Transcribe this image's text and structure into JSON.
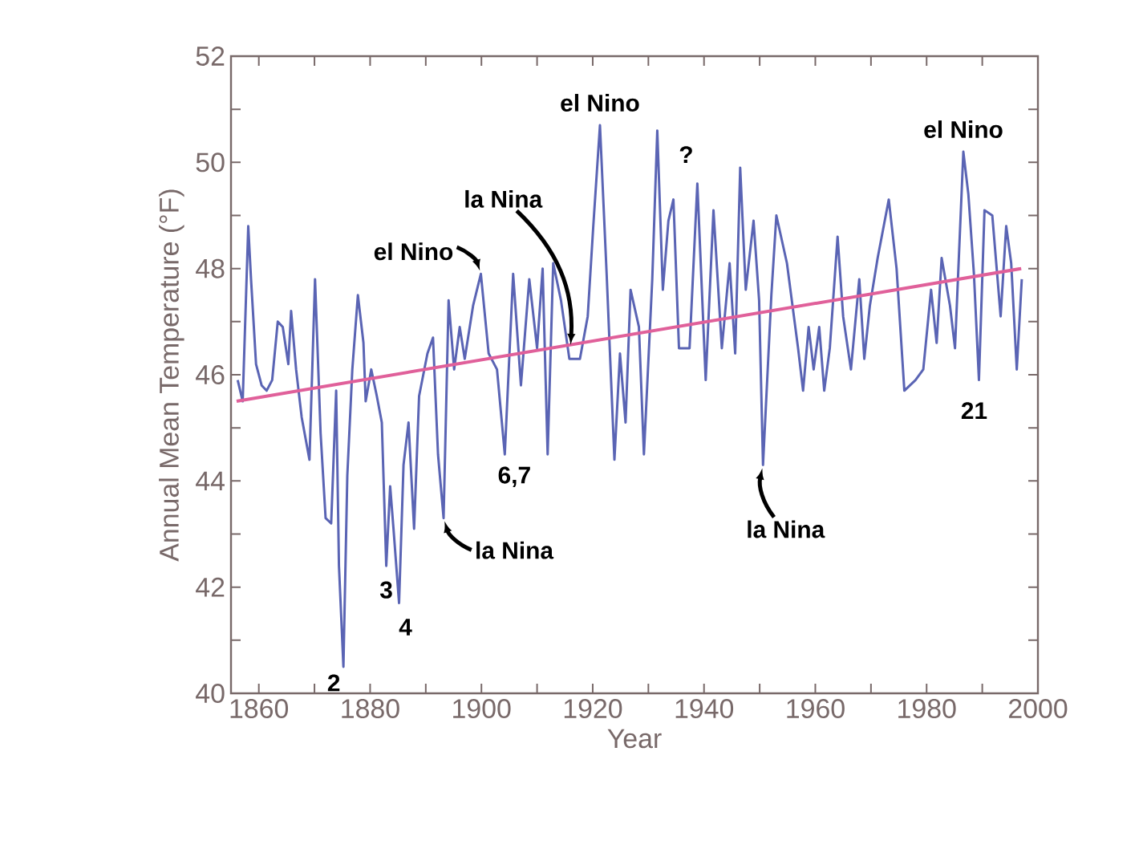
{
  "chart_data": {
    "type": "line",
    "xlabel": "Year",
    "ylabel": "Annual Mean Temperature (°F)",
    "xlim": [
      1855,
      2000
    ],
    "ylim": [
      40,
      52
    ],
    "xticks": [
      1860,
      {
        "value": 1870,
        "label": null
      },
      1880,
      {
        "value": 1890,
        "label": null
      },
      1900,
      {
        "value": 1910,
        "label": null
      },
      1920,
      {
        "value": 1930,
        "label": null
      },
      1940,
      {
        "value": 1950,
        "label": null
      },
      1960,
      {
        "value": 1970,
        "label": null
      },
      1980,
      {
        "value": 1990,
        "label": null
      },
      2000
    ],
    "yticks": [
      40,
      {
        "value": 41,
        "label": null
      },
      42,
      {
        "value": 43,
        "label": null
      },
      44,
      {
        "value": 45,
        "label": null
      },
      46,
      {
        "value": 47,
        "label": null
      },
      48,
      {
        "value": 49,
        "label": null
      },
      50,
      {
        "value": 51,
        "label": null
      },
      52
    ],
    "series": [
      {
        "color": "#5a64b4",
        "x": [
          1856.2,
          1857.1,
          1858.1,
          1858.6,
          1859.5,
          1860.5,
          1861.4,
          1862.4,
          1863.4,
          1864.3,
          1865.3,
          1865.8,
          1866.7,
          1867.7,
          1869.1,
          1870.1,
          1871.1,
          1872.0,
          1873.0,
          1873.9,
          1874.4,
          1875.2,
          1875.9,
          1876.8,
          1877.8,
          1878.8,
          1879.2,
          1880.2,
          1881.2,
          1882.1,
          1882.9,
          1883.6,
          1884.2,
          1885.2,
          1886.0,
          1886.9,
          1887.9,
          1888.8,
          1890.3,
          1891.3,
          1892.2,
          1893.2,
          1894.1,
          1895.1,
          1896.1,
          1897.0,
          1898.5,
          1899.9,
          1901.3,
          1902.8,
          1904.2,
          1905.7,
          1907.1,
          1908.6,
          1910.0,
          1911.0,
          1911.9,
          1912.9,
          1914.3,
          1915.8,
          1917.7,
          1919.1,
          1920.1,
          1921.3,
          1922.5,
          1923.9,
          1924.9,
          1925.9,
          1926.8,
          1928.3,
          1929.2,
          1930.7,
          1931.6,
          1932.6,
          1933.6,
          1934.5,
          1935.5,
          1937.4,
          1938.8,
          1940.3,
          1941.7,
          1943.2,
          1944.6,
          1945.6,
          1946.5,
          1947.5,
          1948.9,
          1949.9,
          1950.6,
          1952.1,
          1953.0,
          1954.9,
          1956.9,
          1957.8,
          1958.8,
          1959.7,
          1960.7,
          1961.6,
          1962.6,
          1964.0,
          1965.0,
          1966.4,
          1967.9,
          1968.8,
          1969.8,
          1971.2,
          1973.2,
          1974.6,
          1976.0,
          1978.0,
          1979.4,
          1980.8,
          1981.8,
          1982.7,
          1984.2,
          1985.1,
          1986.6,
          1987.5,
          1988.5,
          1989.4,
          1990.4,
          1991.8,
          1993.3,
          1994.3,
          1995.2,
          1996.2,
          1997.1
        ],
        "values": [
          45.9,
          45.5,
          48.8,
          47.8,
          46.2,
          45.8,
          45.7,
          45.9,
          47.0,
          46.9,
          46.2,
          47.2,
          46.1,
          45.2,
          44.4,
          47.8,
          44.9,
          43.3,
          43.2,
          45.7,
          42.4,
          40.5,
          44.1,
          46.1,
          47.5,
          46.6,
          45.5,
          46.1,
          45.6,
          45.1,
          42.4,
          43.9,
          43.1,
          41.7,
          44.3,
          45.1,
          43.1,
          45.6,
          46.4,
          46.7,
          44.5,
          43.3,
          47.4,
          46.1,
          46.9,
          46.3,
          47.3,
          47.9,
          46.4,
          46.1,
          44.5,
          47.9,
          45.8,
          47.8,
          46.5,
          48.0,
          44.5,
          48.1,
          47.4,
          46.3,
          46.3,
          47.1,
          48.8,
          50.7,
          47.9,
          44.4,
          46.4,
          45.1,
          47.6,
          46.9,
          44.5,
          47.8,
          50.6,
          47.6,
          48.9,
          49.3,
          46.5,
          46.5,
          49.6,
          45.9,
          49.1,
          46.5,
          48.1,
          46.4,
          49.9,
          47.6,
          48.9,
          47.4,
          44.3,
          47.5,
          49.0,
          48.1,
          46.5,
          45.7,
          46.9,
          46.1,
          46.9,
          45.7,
          46.5,
          48.6,
          47.1,
          46.1,
          47.8,
          46.3,
          47.3,
          48.2,
          49.3,
          48.0,
          45.7,
          45.9,
          46.1,
          47.6,
          46.6,
          48.2,
          47.3,
          46.5,
          50.2,
          49.4,
          47.9,
          45.9,
          49.1,
          49.0,
          47.1,
          48.8,
          48.1,
          46.1,
          47.8
        ]
      },
      {
        "color": "#e0609a",
        "x": [
          1856,
          1997
        ],
        "values": [
          45.5,
          48.0
        ]
      }
    ],
    "annotations": [
      {
        "text": "el Nino",
        "x": 1921.3,
        "y": 50.7
      },
      {
        "text": "?",
        "x": 1931.6,
        "y": 50.6
      },
      {
        "text": "la Nina",
        "x": 1916,
        "y": 46.5
      },
      {
        "text": "el Nino",
        "x": 1899.9,
        "y": 47.9
      },
      {
        "text": "la Nina",
        "x": 1893.2,
        "y": 43.3
      },
      {
        "text": "6,7",
        "x": 1904.2,
        "y": 44.5
      },
      {
        "text": "2",
        "x": 1875.2,
        "y": 40.5
      },
      {
        "text": "3",
        "x": 1882.9,
        "y": 42.4
      },
      {
        "text": "4",
        "x": 1885.2,
        "y": 41.7
      },
      {
        "text": "la Nina",
        "x": 1950.6,
        "y": 44.3
      },
      {
        "text": "el Nino",
        "x": 1986.6,
        "y": 50.2
      },
      {
        "text": "21",
        "x": 1989.4,
        "y": 45.9
      }
    ]
  }
}
